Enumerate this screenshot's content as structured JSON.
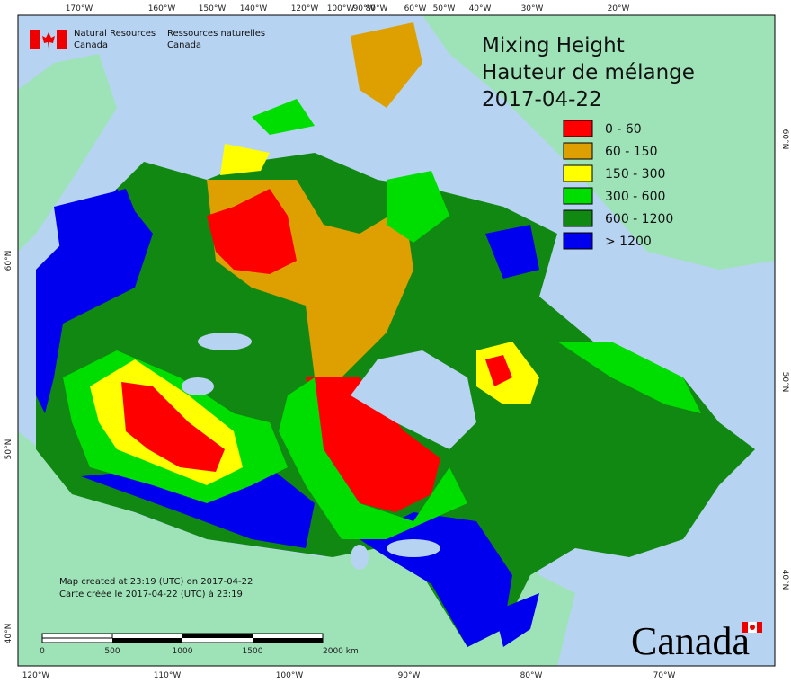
{
  "header": {
    "agency_en": [
      "Natural Resources",
      "Canada"
    ],
    "agency_fr": [
      "Ressources naturelles",
      "Canada"
    ]
  },
  "map": {
    "title": [
      "Mixing Height",
      "Hauteur de mélange",
      "2017-04-22"
    ],
    "legend": [
      {
        "label": "0 - 60",
        "color": "#ff0000"
      },
      {
        "label": "60 - 150",
        "color": "#dda000"
      },
      {
        "label": "150 - 300",
        "color": "#ffff00"
      },
      {
        "label": "300 - 600",
        "color": "#00dd00"
      },
      {
        "label": "600 - 1200",
        "color": "#118811"
      },
      {
        "label": "> 1200",
        "color": "#0000ee"
      }
    ],
    "top_labels": [
      "170°W",
      "160°W",
      "150°W",
      "140°W",
      "120°W",
      "100°W",
      "90°W",
      "80°W",
      "60°W",
      "50°W",
      "40°W",
      "30°W",
      "20°W"
    ],
    "bottom_labels": [
      "120°W",
      "110°W",
      "100°W",
      "90°W",
      "80°W",
      "70°W"
    ],
    "left_labels": [
      "60°N",
      "50°N",
      "40°N"
    ],
    "right_labels": [
      "60°N",
      "50°N",
      "40°N"
    ],
    "notes": [
      "Map created at 23:19 (UTC) on 2017-04-22",
      "Carte créée le 2017-04-22 (UTC) à 23:19"
    ],
    "scale_labels": [
      "0",
      "500",
      "1000",
      "1500",
      "2000 km"
    ],
    "wordmark": "Canada"
  }
}
